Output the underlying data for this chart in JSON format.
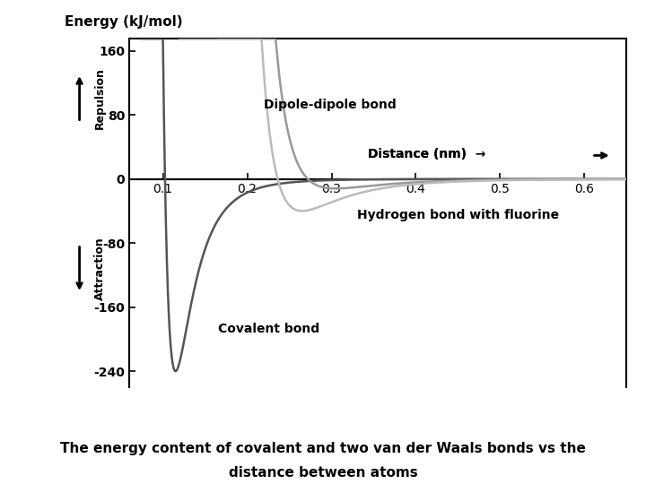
{
  "title_line1": "The energy content of covalent and two van der Waals bonds vs the",
  "title_line2": "distance between atoms",
  "ylabel": "Energy (kJ/mol)",
  "xlabel_text": "Distance (nm)",
  "xlim": [
    0.06,
    0.65
  ],
  "ylim": [
    -260,
    175
  ],
  "yticks": [
    -240,
    -160,
    -80,
    0,
    80,
    160
  ],
  "ytick_labels": [
    "-240",
    "-160",
    "-80",
    "0",
    "80",
    "160"
  ],
  "xticks": [
    0.1,
    0.2,
    0.3,
    0.4,
    0.5,
    0.6
  ],
  "xtick_labels": [
    "0.1",
    "0.2",
    "0.3",
    "0.4",
    "0.5",
    "0.6"
  ],
  "covalent_color": "#555555",
  "dipole_color": "#999999",
  "hbond_color": "#bbbbbb",
  "bg_color": "#ffffff",
  "annotation_covalent": "Covalent bond",
  "annotation_dipole": "Dipole-dipole bond",
  "annotation_hbond": "Hydrogen bond with fluorine",
  "annotation_repulsion": "Repulsion",
  "annotation_attraction": "Attraction"
}
